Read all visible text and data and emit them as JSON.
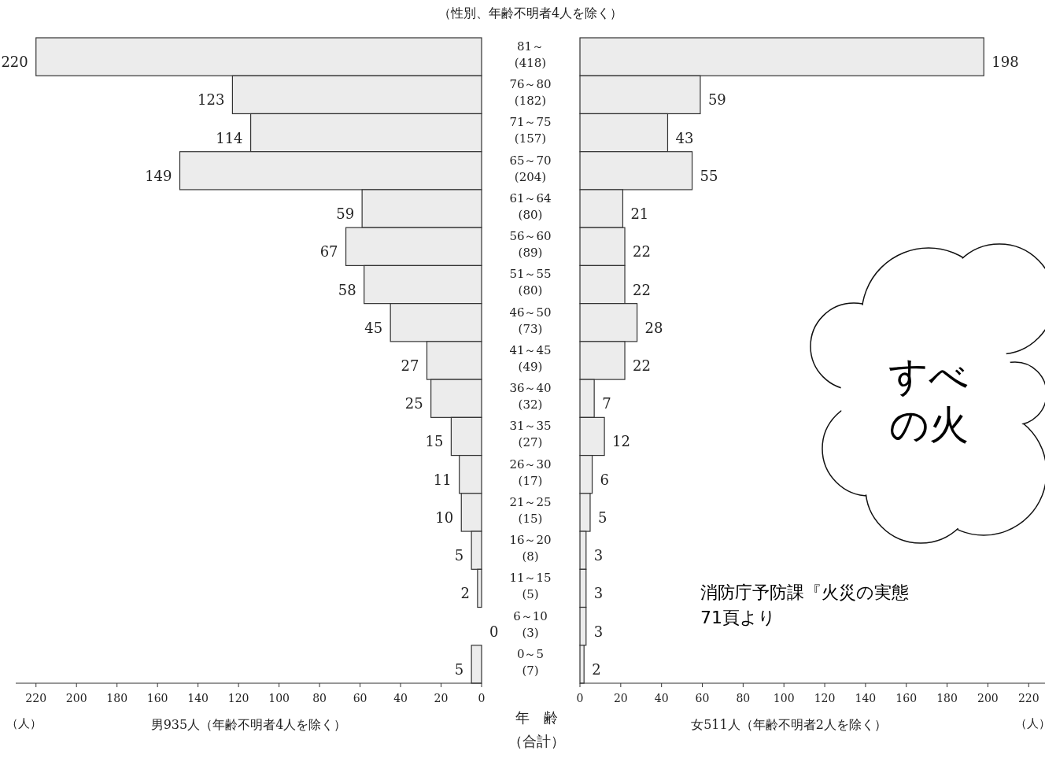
{
  "chart_data": [
    {
      "type": "bar",
      "orientation": "horizontal",
      "title": "（性別、年齢不明者4人を除く）",
      "xlabel": "男935人（年齢不明者4人を除く）",
      "ylabel": "年　齢",
      "annotations": [
        "（人）",
        "（合計）"
      ],
      "categories": [
        "81～\n(418)",
        "76～80\n(182)",
        "71～75\n(157)",
        "65～70\n(204)",
        "61～64\n(80)",
        "56～60\n(89)",
        "51～55\n(80)",
        "46～50\n(73)",
        "41～45\n(49)",
        "36～40\n(32)",
        "31～35\n(27)",
        "26～30\n(17)",
        "21～25\n(15)",
        "16～20\n(8)",
        "11～15\n(5)",
        "6～10\n(3)",
        "0～5\n(7)"
      ],
      "values": [
        220,
        123,
        114,
        149,
        59,
        67,
        58,
        45,
        27,
        25,
        15,
        11,
        10,
        5,
        2,
        0,
        5
      ],
      "color": "#ececec",
      "xlim": [
        230,
        0
      ],
      "xticks": [
        0,
        20,
        40,
        60,
        80,
        100,
        120,
        140,
        160,
        180,
        200,
        220
      ],
      "data_labels": true
    },
    {
      "type": "bar",
      "orientation": "horizontal",
      "xlabel": "女511人（年齢不明者2人を除く）",
      "annotations": [
        "（人）",
        "すべ",
        "の火",
        "消防庁予防課『火災の実態",
        "71頁より"
      ],
      "categories": [
        null,
        null,
        null,
        null,
        null,
        null,
        null,
        null,
        null,
        null,
        null,
        null,
        null,
        null,
        null,
        null,
        null
      ],
      "values": [
        198,
        59,
        43,
        55,
        21,
        22,
        22,
        28,
        22,
        7,
        12,
        6,
        5,
        3,
        3,
        3,
        2
      ],
      "color": "#ececec",
      "xlim": [
        0,
        228
      ],
      "xticks": [
        0,
        20,
        40,
        60,
        80,
        100,
        120,
        140,
        160,
        180,
        200,
        220
      ],
      "data_labels": true
    }
  ]
}
